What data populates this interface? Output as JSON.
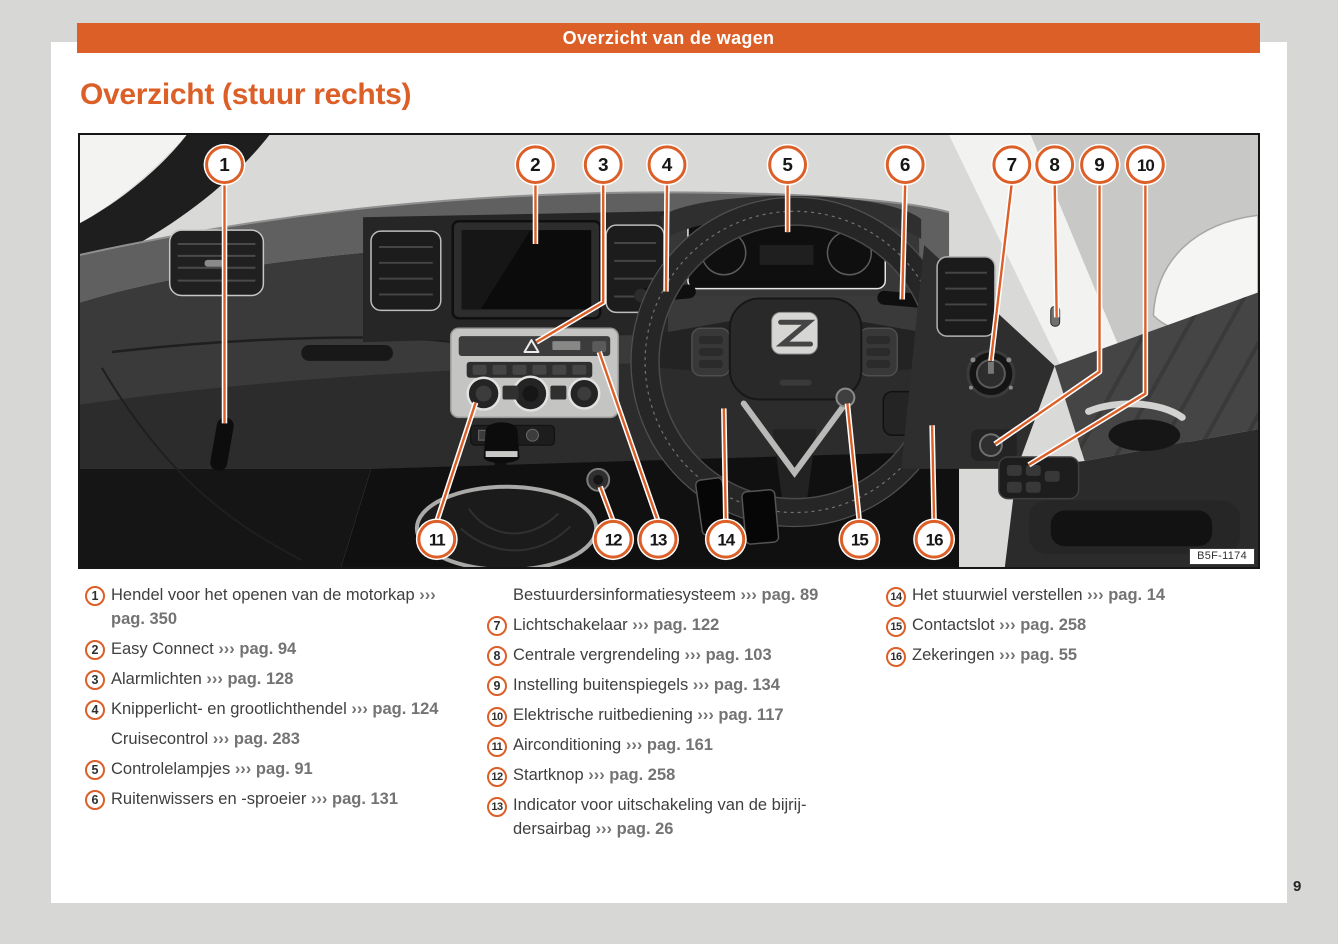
{
  "page": {
    "header_bar_title": "Overzicht van de wagen",
    "section_title": "Overzicht (stuur rechts)",
    "page_number": "9"
  },
  "figure": {
    "code_label": "B5F-1174",
    "callouts": [
      "1",
      "2",
      "3",
      "4",
      "5",
      "6",
      "7",
      "8",
      "9",
      "10",
      "11",
      "12",
      "13",
      "14",
      "15",
      "16"
    ]
  },
  "legend": {
    "arrow": "›››",
    "columns": [
      {
        "items": [
          {
            "num": "1",
            "text": "Hendel voor het openen van de motorkap",
            "ref": "pag. 350"
          },
          {
            "num": "2",
            "text": "Easy Connect",
            "ref": "pag. 94"
          },
          {
            "num": "3",
            "text": "Alarmlichten",
            "ref": "pag. 128"
          },
          {
            "num": "4",
            "text": "Knipperlicht- en grootlichthendel",
            "ref": "pag. 124"
          },
          {
            "num": null,
            "text": "Cruisecontrol",
            "ref": "pag. 283"
          },
          {
            "num": "5",
            "text": "Controlelampjes",
            "ref": "pag. 91"
          },
          {
            "num": "6",
            "text": "Ruitenwissers en -sproeier",
            "ref": "pag. 131"
          }
        ]
      },
      {
        "items": [
          {
            "num": null,
            "text": "Bestuurdersinformatiesysteem",
            "ref": "pag. 89"
          },
          {
            "num": "7",
            "text": "Lichtschakelaar",
            "ref": "pag. 122"
          },
          {
            "num": "8",
            "text": "Centrale vergrendeling",
            "ref": "pag. 103"
          },
          {
            "num": "9",
            "text": "Instelling buitenspiegels",
            "ref": "pag. 134"
          },
          {
            "num": "10",
            "text": "Elektrische ruitbediening",
            "ref": "pag. 117"
          },
          {
            "num": "11",
            "text": "Airconditioning",
            "ref": "pag. 161"
          },
          {
            "num": "12",
            "text": "Startknop",
            "ref": "pag. 258"
          },
          {
            "num": "13",
            "text": "Indicator voor uitschakeling van de bijrij­dersairbag",
            "ref": "pag. 26"
          }
        ]
      },
      {
        "items": [
          {
            "num": "14",
            "text": "Het stuurwiel verstellen",
            "ref": "pag. 14"
          },
          {
            "num": "15",
            "text": "Contactslot",
            "ref": "pag. 258"
          },
          {
            "num": "16",
            "text": "Zekeringen",
            "ref": "pag. 55"
          }
        ]
      }
    ]
  },
  "colors": {
    "accent_orange": "#dc5f28",
    "canvas_gray": "#d7d7d5",
    "page_white": "#ffffff",
    "legend_text": "#3f3f3f",
    "reference_gray": "#737373"
  }
}
